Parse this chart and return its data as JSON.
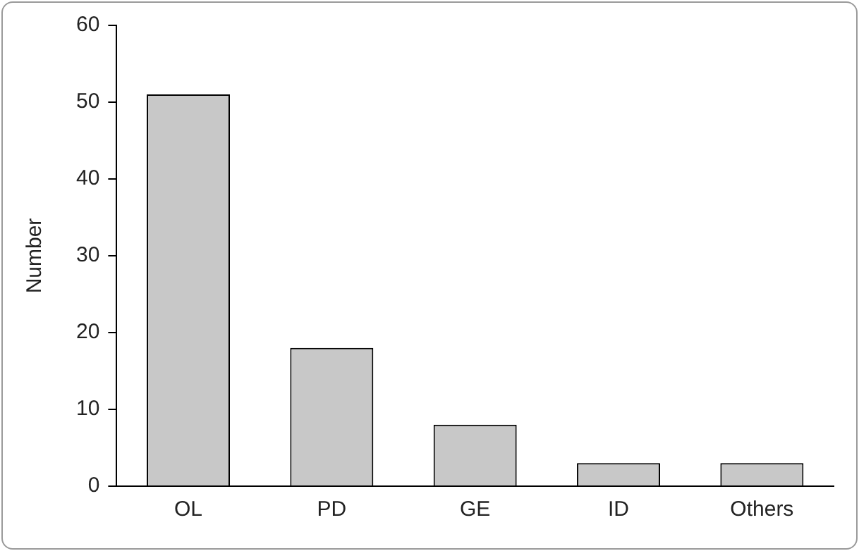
{
  "chart_data": {
    "type": "bar",
    "ylabel": "Number",
    "categories": [
      "OL",
      "PD",
      "GE",
      "ID",
      "Others"
    ],
    "values": [
      51,
      18,
      8,
      3,
      3
    ],
    "color": "#c8c8c8",
    "ylim": [
      0,
      60
    ],
    "yticks": [
      0,
      10,
      20,
      30,
      40,
      50,
      60
    ],
    "grid": false,
    "legend": false
  }
}
